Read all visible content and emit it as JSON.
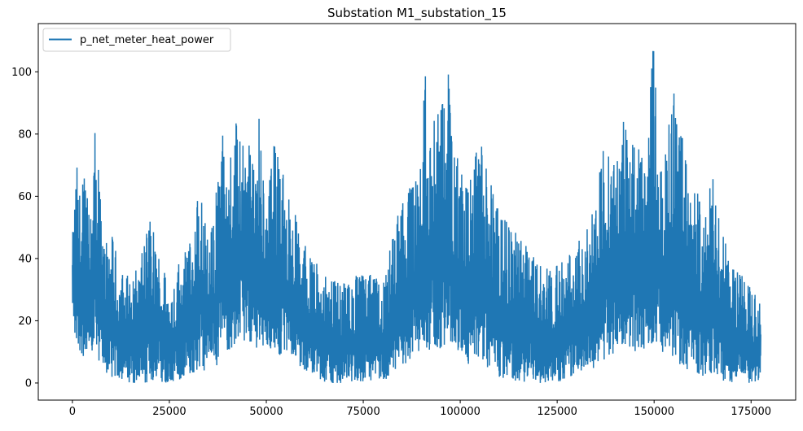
{
  "chart_data": {
    "type": "line",
    "title": "Substation M1_substation_15",
    "xlabel": "",
    "ylabel": "",
    "xlim": [
      -8800,
      186500
    ],
    "ylim": [
      -5.5,
      115.5
    ],
    "xticks": [
      0,
      25000,
      50000,
      75000,
      100000,
      125000,
      150000,
      175000
    ],
    "yticks": [
      0,
      20,
      40,
      60,
      80,
      100
    ],
    "grid": false,
    "legend": {
      "position": "top-left"
    },
    "series": [
      {
        "name": "p_net_meter_heat_power",
        "color": "#1f77b4",
        "x_range": [
          0,
          177500
        ],
        "envelope_x": [
          0,
          1000,
          2000,
          3000,
          4000,
          5000,
          6000,
          7000,
          8000,
          10000,
          12000,
          15000,
          18000,
          20000,
          25000,
          28000,
          30000,
          33000,
          35000,
          37000,
          38000,
          40000,
          42000,
          45000,
          47000,
          48000,
          50000,
          52000,
          55000,
          58000,
          60000,
          63000,
          65000,
          70000,
          75000,
          80000,
          85000,
          88000,
          90000,
          91000,
          92000,
          94000,
          96000,
          97000,
          98000,
          100000,
          102000,
          105000,
          107000,
          110000,
          115000,
          120000,
          125000,
          130000,
          133000,
          135000,
          138000,
          140000,
          142000,
          145000,
          148000,
          149000,
          150000,
          152000,
          155000,
          158000,
          160000,
          163000,
          165000,
          168000,
          170000,
          173000,
          175000,
          177500
        ],
        "envelope_max": [
          46,
          73,
          62,
          69,
          60,
          52,
          89,
          63,
          50,
          49,
          39,
          33,
          42,
          53,
          33,
          40,
          44,
          68,
          44,
          60,
          92,
          65,
          85,
          80,
          68,
          88,
          58,
          78,
          65,
          52,
          45,
          40,
          35,
          32,
          36,
          33,
          60,
          65,
          72,
          105,
          75,
          90,
          92,
          105,
          80,
          70,
          65,
          78,
          72,
          55,
          48,
          40,
          38,
          45,
          50,
          60,
          88,
          70,
          85,
          78,
          70,
          102,
          110,
          65,
          95,
          75,
          68,
          52,
          70,
          50,
          40,
          35,
          30,
          26
        ],
        "envelope_min": [
          20,
          11,
          10,
          8,
          12,
          10,
          14,
          5,
          3,
          2,
          1,
          0,
          0,
          0,
          0,
          1,
          2,
          3,
          5,
          2,
          12,
          10,
          12,
          13,
          10,
          12,
          12,
          10,
          8,
          5,
          4,
          2,
          0,
          0,
          0,
          0,
          5,
          8,
          10,
          12,
          10,
          10,
          12,
          15,
          10,
          8,
          6,
          8,
          4,
          2,
          0,
          0,
          0,
          3,
          4,
          5,
          8,
          10,
          12,
          10,
          10,
          12,
          12,
          10,
          8,
          4,
          3,
          2,
          3,
          0,
          0,
          0,
          0,
          0
        ],
        "density_note": ""
      }
    ]
  }
}
